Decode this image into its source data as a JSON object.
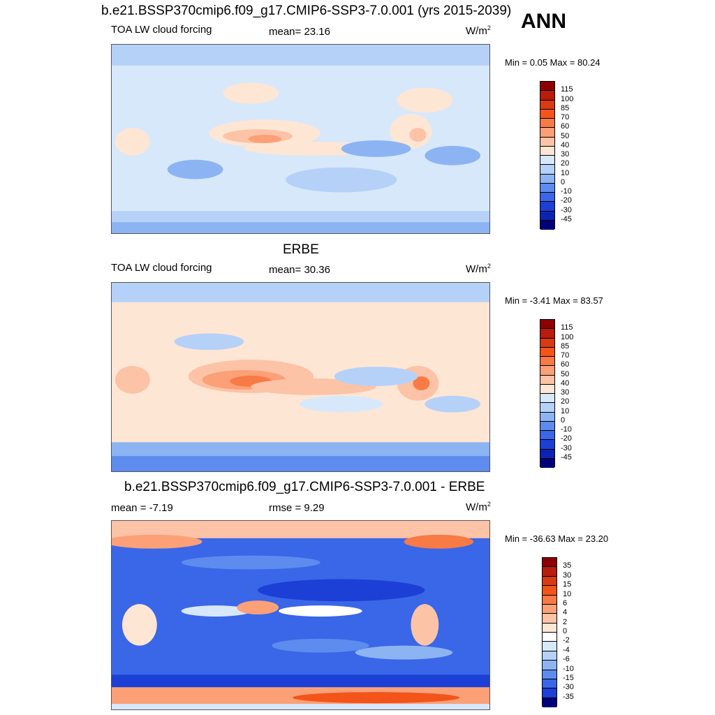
{
  "title": "b.e21.BSSP370cmip6.f09_g17.CMIP6-SSP3-7.0.001 (yrs 2015-2039)",
  "season": "ANN",
  "panels": [
    {
      "header": "",
      "left_label": "TOA LW cloud forcing",
      "center_label": "mean=  23.16",
      "units": "W/m",
      "units_exp": "2",
      "minmax": "Min =   0.05 Max =  80.24",
      "levels": [
        "115",
        "100",
        "85",
        "70",
        "60",
        "50",
        "40",
        "30",
        "20",
        "10",
        "0",
        "-10",
        "-20",
        "-30",
        "-45"
      ],
      "palette": "abs"
    },
    {
      "header": "ERBE",
      "left_label": "TOA LW cloud forcing",
      "center_label": "mean=  30.36",
      "units": "W/m",
      "units_exp": "2",
      "minmax": "Min =  -3.41 Max =  83.57",
      "levels": [
        "115",
        "100",
        "85",
        "70",
        "60",
        "50",
        "40",
        "30",
        "20",
        "10",
        "0",
        "-10",
        "-20",
        "-30",
        "-45"
      ],
      "palette": "abs"
    },
    {
      "header": "b.e21.BSSP370cmip6.f09_g17.CMIP6-SSP3-7.0.001 - ERBE",
      "left_label": "mean =  -7.19",
      "center_label": "rmse =   9.29",
      "units": "W/m",
      "units_exp": "2",
      "minmax": "Min = -36.63 Max =  23.20",
      "levels": [
        "35",
        "30",
        "15",
        "10",
        "6",
        "4",
        "2",
        "0",
        "-2",
        "-4",
        "-6",
        "-10",
        "-15",
        "-30",
        "-35"
      ],
      "palette": "diff"
    }
  ],
  "colors": {
    "abs": [
      "#8b0000",
      "#b71c0c",
      "#d93a12",
      "#f2541a",
      "#f87a44",
      "#fba077",
      "#fcc3a6",
      "#fee6d5",
      "#d7e8fb",
      "#b6d1f8",
      "#8db4f2",
      "#5d8cee",
      "#3a66e8",
      "#1c3fd6",
      "#0b24b0",
      "#000078"
    ],
    "diff": [
      "#8b0000",
      "#b71c0c",
      "#d93a12",
      "#f2541a",
      "#f87a44",
      "#fba077",
      "#fcc3a6",
      "#fee6d5",
      "#ffffff",
      "#d7e8fb",
      "#b6d1f8",
      "#8db4f2",
      "#5d8cee",
      "#3a66e8",
      "#1c3fd6",
      "#000078"
    ]
  }
}
